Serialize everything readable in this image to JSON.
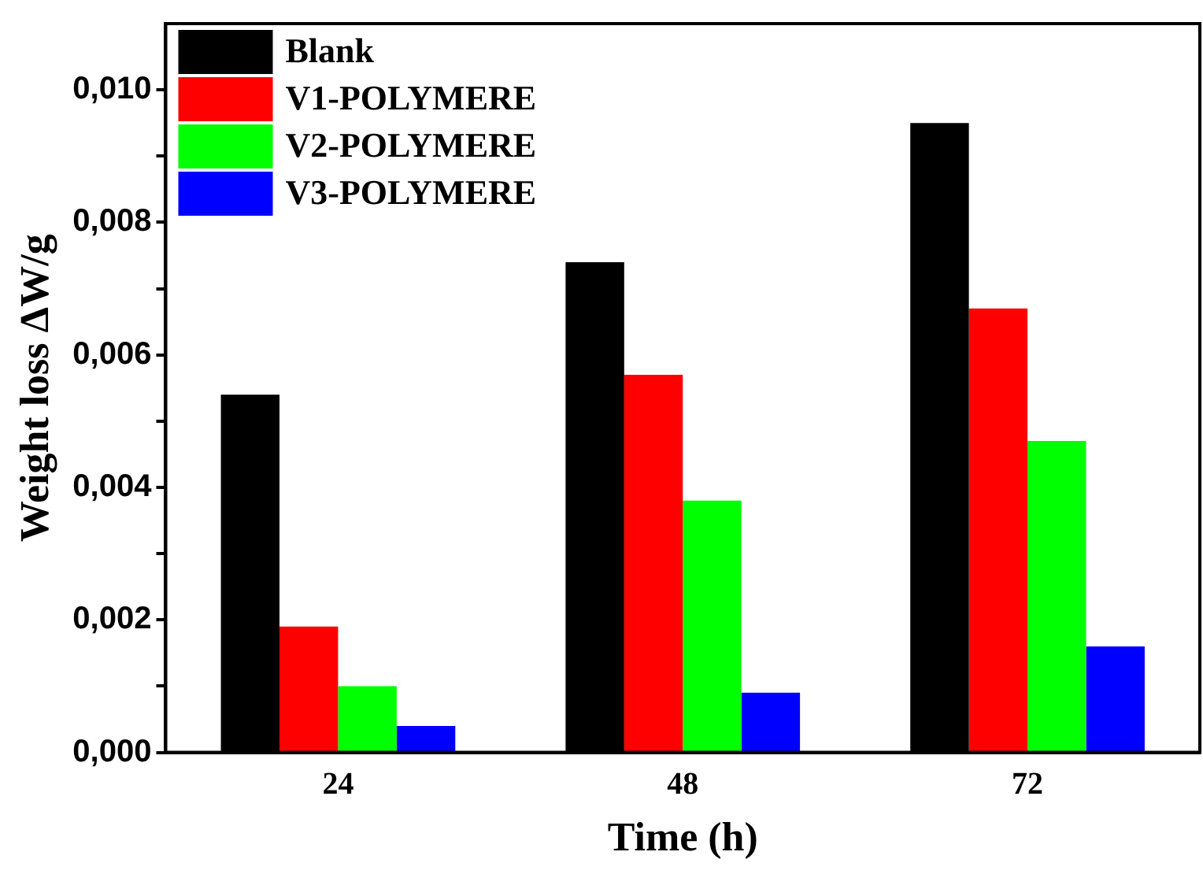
{
  "chart_data": {
    "type": "bar",
    "xlabel": "Time (h)",
    "ylabel": "Weight loss ΔW/g",
    "categories": [
      "24",
      "48",
      "72"
    ],
    "series": [
      {
        "name": "Blank",
        "color": "#000000",
        "values": [
          0.0054,
          0.0074,
          0.0095
        ]
      },
      {
        "name": "V1-POLYMERE",
        "color": "#ff0000",
        "values": [
          0.0019,
          0.0057,
          0.0067
        ]
      },
      {
        "name": "V2-POLYMERE",
        "color": "#00ff00",
        "values": [
          0.001,
          0.0038,
          0.0047
        ]
      },
      {
        "name": "V3-POLYMERE",
        "color": "#0000ff",
        "values": [
          0.0004,
          0.0009,
          0.0016
        ]
      }
    ],
    "ylim": [
      0,
      0.011
    ],
    "yticks": [
      {
        "value": 0,
        "label": "0,000"
      },
      {
        "value": 0.001,
        "label": null
      },
      {
        "value": 0.002,
        "label": "0,002"
      },
      {
        "value": 0.003,
        "label": null
      },
      {
        "value": 0.004,
        "label": "0,004"
      },
      {
        "value": 0.005,
        "label": null
      },
      {
        "value": 0.006,
        "label": "0,006"
      },
      {
        "value": 0.007,
        "label": null
      },
      {
        "value": 0.008,
        "label": "0,008"
      },
      {
        "value": 0.009,
        "label": null
      },
      {
        "value": 0.01,
        "label": "0,010"
      }
    ],
    "legend": "top left",
    "grid": false
  }
}
